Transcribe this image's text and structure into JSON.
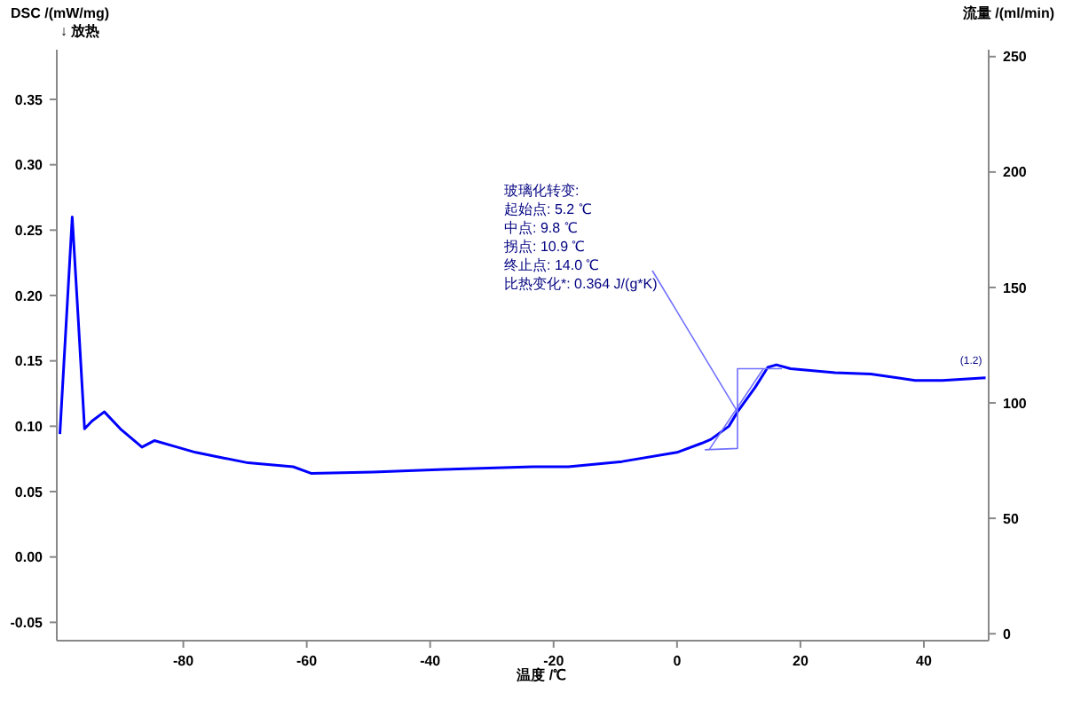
{
  "chart_data": {
    "type": "line",
    "xlabel": "温度 /℃",
    "ylabel": "DSC /(mW/mg)\n↓ 放热",
    "y2label": "流量 /(ml/min)",
    "xlim": [
      -100.5,
      50.5
    ],
    "xticks": [
      -80,
      -60,
      -40,
      -20,
      0,
      20,
      40
    ],
    "ylim": [
      -0.064,
      0.388
    ],
    "yticks": [
      {
        "value": -0.05,
        "label": "-0.05"
      },
      {
        "value": 0,
        "label": "0.00"
      },
      {
        "value": 0.05,
        "label": "0.05"
      },
      {
        "value": 0.1,
        "label": "0.10"
      },
      {
        "value": 0.15,
        "label": "0.15"
      },
      {
        "value": 0.2,
        "label": "0.20"
      },
      {
        "value": 0.25,
        "label": "0.25"
      },
      {
        "value": 0.3,
        "label": "0.30"
      },
      {
        "value": 0.35,
        "label": "0.35"
      }
    ],
    "y2lim": [
      -3,
      253
    ],
    "y2ticks": [
      0,
      50,
      100,
      150,
      200,
      250
    ],
    "grid": false,
    "line_style": "solid",
    "marker": "none",
    "series": [
      {
        "color": "#0000ff",
        "x": [
          -100,
          -98,
          -97,
          -96,
          -94.8,
          -92.8,
          -90.2,
          -86.7,
          -84.7,
          -81,
          -78,
          -73.8,
          -69.5,
          -62.2,
          -59.3,
          -49.3,
          -37.8,
          -23.3,
          -17.6,
          -8.9,
          0,
          4,
          5.5,
          8.4,
          9.8,
          12.7,
          14.7,
          16.1,
          18.4,
          25.6,
          31.4,
          38.6,
          43,
          50
        ],
        "values": [
          0.094,
          0.26,
          0.18,
          0.098,
          0.104,
          0.111,
          0.098,
          0.084,
          0.089,
          0.084,
          0.08,
          0.076,
          0.072,
          0.069,
          0.064,
          0.065,
          0.067,
          0.069,
          0.069,
          0.073,
          0.08,
          0.087,
          0.09,
          0.1,
          0.111,
          0.13,
          0.145,
          0.147,
          0.144,
          0.141,
          0.14,
          0.135,
          0.135,
          0.137
        ]
      },
      {
        "type": "line",
        "color": "#7070ff",
        "x": [
          4.5,
          9.8,
          9.8,
          17
        ],
        "values": [
          0.082,
          0.083,
          0.144,
          0.144
        ]
      },
      {
        "type": "line",
        "color": "#7070ff",
        "x": [
          5.2,
          14
        ],
        "values": [
          0.082,
          0.144
        ]
      },
      {
        "type": "line",
        "color": "#7070ff",
        "x": [
          -4,
          9.8
        ],
        "values": [
          0.219,
          0.111
        ]
      }
    ],
    "annotations": [
      "玻璃化转变:",
      "起始点:  5.2 ℃",
      "中点:  9.8 ℃",
      "拐点:  10.9 ℃",
      "终止点:  14.0 ℃",
      "比热变化*:  0.364 J/(g*K)",
      {
        "text": "(1.2)",
        "x": 50,
        "y": 0.137
      }
    ]
  }
}
